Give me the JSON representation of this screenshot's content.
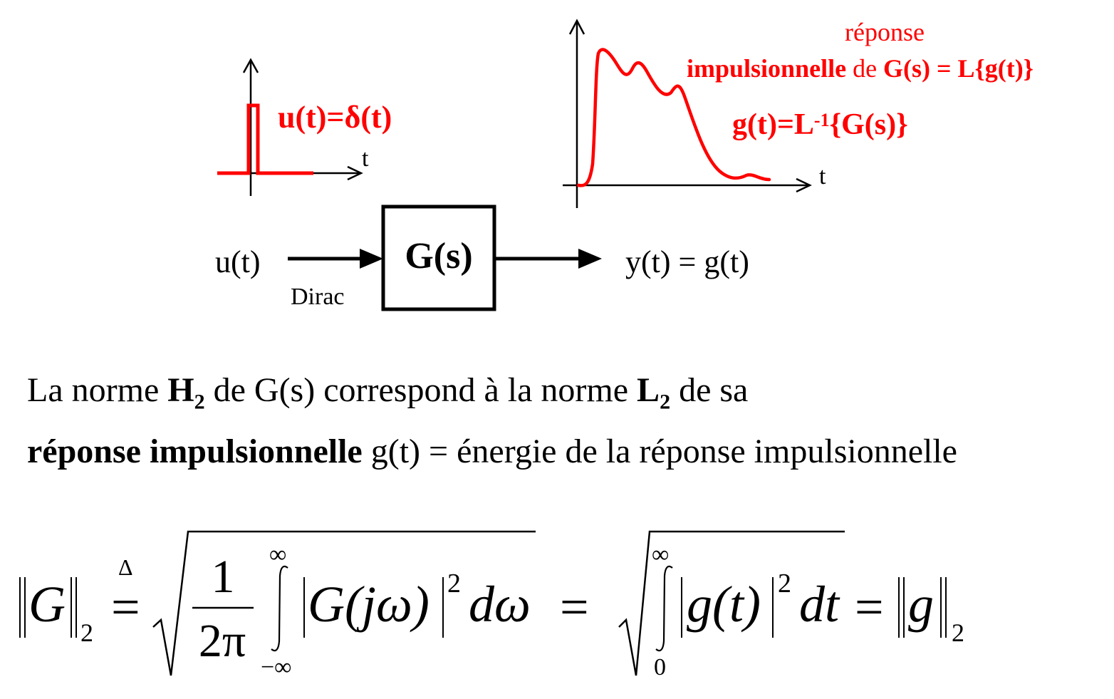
{
  "colors": {
    "accent": "#ff0000",
    "ink": "#000000"
  },
  "input_plot": {
    "u_label": "u(t)=δ(t)",
    "t_axis": "t"
  },
  "output_plot": {
    "t_axis": "t",
    "caption_line1": "réponse",
    "caption_impulsionnelle": "impulsionnelle",
    "caption_de": " de ",
    "caption_G": "G(s) = L{g(t)}",
    "g_lhs": "g(t)=L",
    "g_exp": "-1",
    "g_rhs": "{G(s)}"
  },
  "block": {
    "input": "u(t)",
    "input_note": "Dirac",
    "transfer": "G(s)",
    "output": "y(t) = g(t)"
  },
  "text": {
    "l1_a": "La norme ",
    "l1_H": "H",
    "l1_sub1": "2",
    "l1_b": " de G(s) correspond à la norme ",
    "l1_L": "L",
    "l1_sub2": "2",
    "l1_c": " de sa",
    "l2_bold": "réponse impulsionnelle",
    "l2_rest": " g(t) = énergie de la réponse impulsionnelle"
  },
  "formula": {
    "norm_G": "G",
    "sub2": "2",
    "delta": "Δ",
    "eq_def": "=",
    "num": "1",
    "den": "2π",
    "int1_upper": "∞",
    "int1_lower": "−∞",
    "G_jw": "G(jω)",
    "exp2": "2",
    "d_omega": "dω",
    "eq_mid": "=",
    "int2_upper": "∞",
    "int2_lower": "0",
    "g_t": "g(t)",
    "exp2b": "2",
    "dt": "dt",
    "eq_right": "=",
    "norm_g": "g",
    "sub2b": "2"
  }
}
